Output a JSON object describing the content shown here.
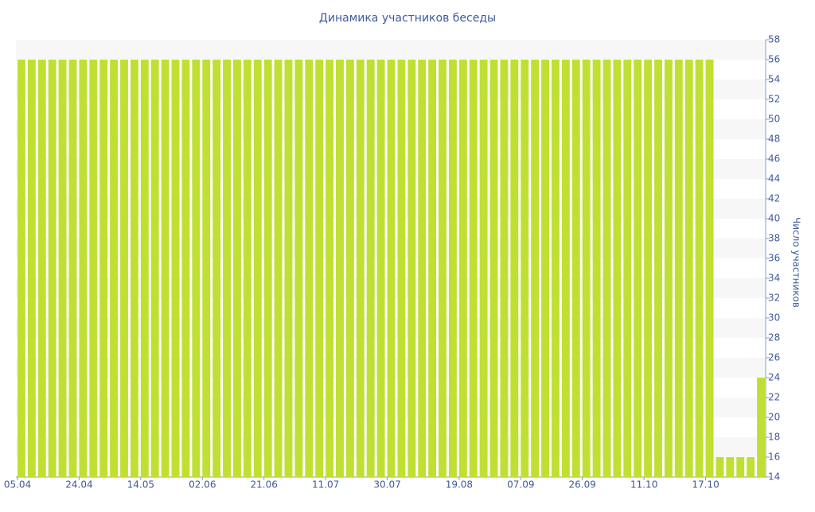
{
  "chart_data": {
    "type": "bar",
    "title": "Динамика участников беседы",
    "y_label": "Число участников",
    "categories": [
      "05.04",
      null,
      null,
      null,
      null,
      null,
      "24.04",
      null,
      null,
      null,
      null,
      null,
      "14.05",
      null,
      null,
      null,
      null,
      null,
      "02.06",
      null,
      null,
      null,
      null,
      null,
      "21.06",
      null,
      null,
      null,
      null,
      null,
      "11.07",
      null,
      null,
      null,
      null,
      null,
      "30.07",
      null,
      null,
      null,
      null,
      null,
      null,
      "19.08",
      null,
      null,
      null,
      null,
      null,
      "07.09",
      null,
      null,
      null,
      null,
      null,
      "26.09",
      null,
      null,
      null,
      null,
      null,
      "11.10",
      null,
      null,
      null,
      null,
      null,
      "17.10",
      null,
      null,
      null,
      null,
      null
    ],
    "values": [
      56,
      56,
      56,
      56,
      56,
      56,
      56,
      56,
      56,
      56,
      56,
      56,
      56,
      56,
      56,
      56,
      56,
      56,
      56,
      56,
      56,
      56,
      56,
      56,
      56,
      56,
      56,
      56,
      56,
      56,
      56,
      56,
      56,
      56,
      56,
      56,
      56,
      56,
      56,
      56,
      56,
      56,
      56,
      56,
      56,
      56,
      56,
      56,
      56,
      56,
      56,
      56,
      56,
      56,
      56,
      56,
      56,
      56,
      56,
      56,
      56,
      56,
      56,
      56,
      56,
      56,
      56,
      56,
      16,
      16,
      16,
      16,
      24
    ],
    "color": "#bfe033",
    "ylim": [
      14,
      58
    ],
    "yticks": [
      14,
      16,
      18,
      20,
      22,
      24,
      26,
      28,
      30,
      32,
      34,
      36,
      38,
      40,
      42,
      44,
      46,
      48,
      50,
      52,
      54,
      56,
      58
    ],
    "grid": true
  }
}
